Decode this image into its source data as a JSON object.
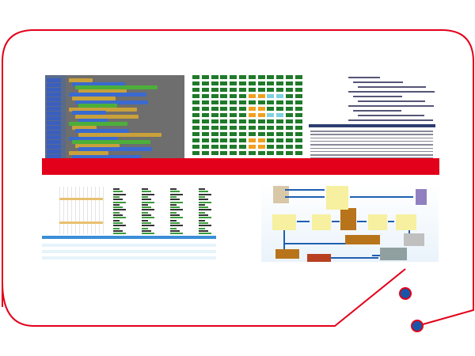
{
  "colors": {
    "frame": "#e2001a",
    "band": "#e2001a",
    "dot": "#1a56a8",
    "grid_cell": "#1f7a2a",
    "grid_warn": "#f0a020",
    "grid_info": "#7fd0e0",
    "flow_arrow": "#1f5fb0"
  },
  "panels": [
    {
      "name": "block-editor-screenshot",
      "icon": "puzzle-blocks"
    },
    {
      "name": "status-grid-screenshot",
      "icon": "grid"
    },
    {
      "name": "code-editor-screenshot",
      "icon": "code"
    },
    {
      "name": "schedule-table-screenshot",
      "icon": "table"
    },
    {
      "name": "logistics-flowchart",
      "icon": "flowchart"
    }
  ]
}
